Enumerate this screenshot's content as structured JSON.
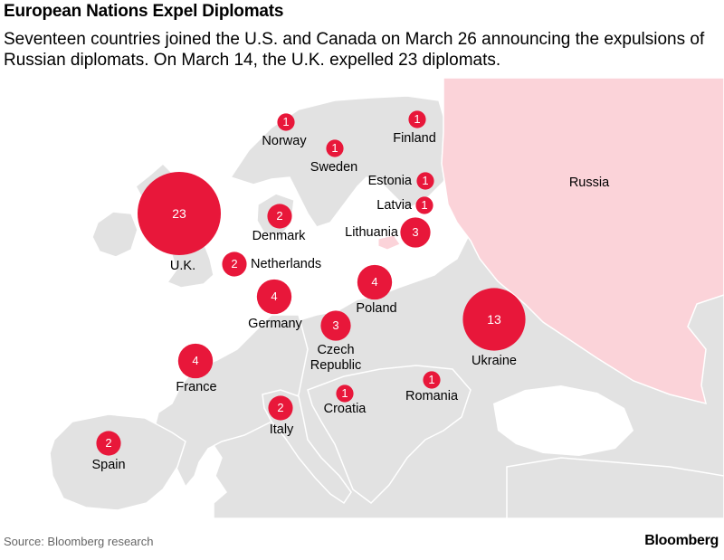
{
  "header": {
    "title": "European Nations Expel Diplomats",
    "subtitle": "Seventeen countries joined the U.S. and Canada on March 26 announcing the expulsions of Russian diplomats. On March 14, the U.K. expelled 23 diplomats."
  },
  "colors": {
    "bubble": "#e8173a",
    "russia_fill": "#fbd3d9",
    "land": "#e2e2e2",
    "sea": "#ffffff"
  },
  "map": {
    "russia_label": "Russia",
    "countries": [
      {
        "name": "Norway",
        "expelled": 1
      },
      {
        "name": "Finland",
        "expelled": 1
      },
      {
        "name": "Sweden",
        "expelled": 1
      },
      {
        "name": "Estonia",
        "expelled": 1
      },
      {
        "name": "Latvia",
        "expelled": 1
      },
      {
        "name": "Lithuania",
        "expelled": 3
      },
      {
        "name": "Denmark",
        "expelled": 2
      },
      {
        "name": "U.K.",
        "expelled": 23
      },
      {
        "name": "Netherlands",
        "expelled": 2
      },
      {
        "name": "Germany",
        "expelled": 4
      },
      {
        "name": "Poland",
        "expelled": 4
      },
      {
        "name": "Czech Republic",
        "expelled": 3
      },
      {
        "name": "Ukraine",
        "expelled": 13
      },
      {
        "name": "France",
        "expelled": 4
      },
      {
        "name": "Romania",
        "expelled": 1
      },
      {
        "name": "Croatia",
        "expelled": 1
      },
      {
        "name": "Italy",
        "expelled": 2
      },
      {
        "name": "Spain",
        "expelled": 2
      }
    ]
  },
  "footer": {
    "source": "Source: Bloomberg research",
    "brand": "Bloomberg"
  }
}
